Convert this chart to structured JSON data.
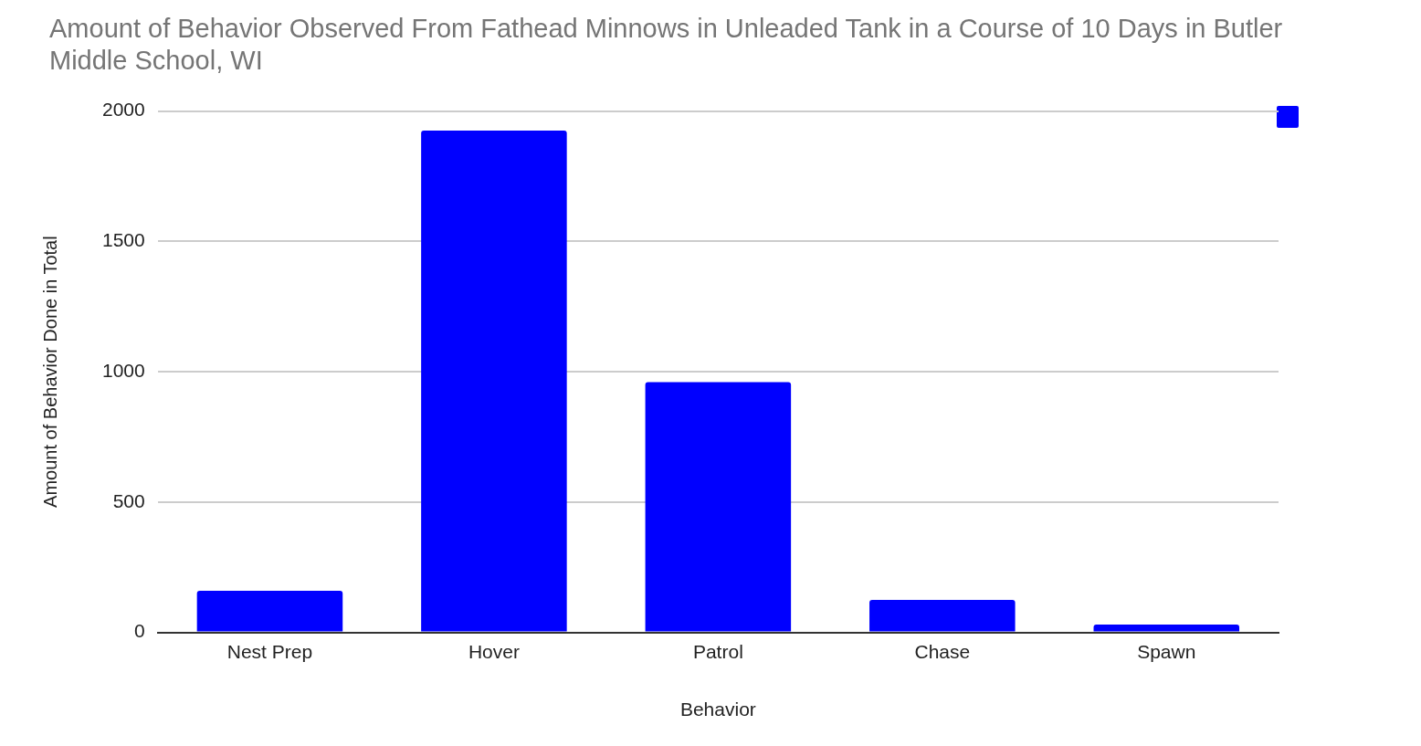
{
  "chart_data": {
    "type": "bar",
    "title": "Amount of Behavior Observed From Fathead Minnows in Unleaded Tank in a Course of 10 Days in Butler Middle School, WI",
    "xlabel": "Behavior",
    "ylabel": "Amount of Behavior Done in Total",
    "categories": [
      "Nest Prep",
      "Hover",
      "Patrol",
      "Chase",
      "Spawn"
    ],
    "series": [
      {
        "color": "#0000ff",
        "values": [
          160,
          1925,
          960,
          125,
          30
        ]
      }
    ],
    "ylim": [
      0,
      2000
    ],
    "yticks": [
      0,
      500,
      1000,
      1500,
      2000
    ],
    "grid": "y"
  }
}
